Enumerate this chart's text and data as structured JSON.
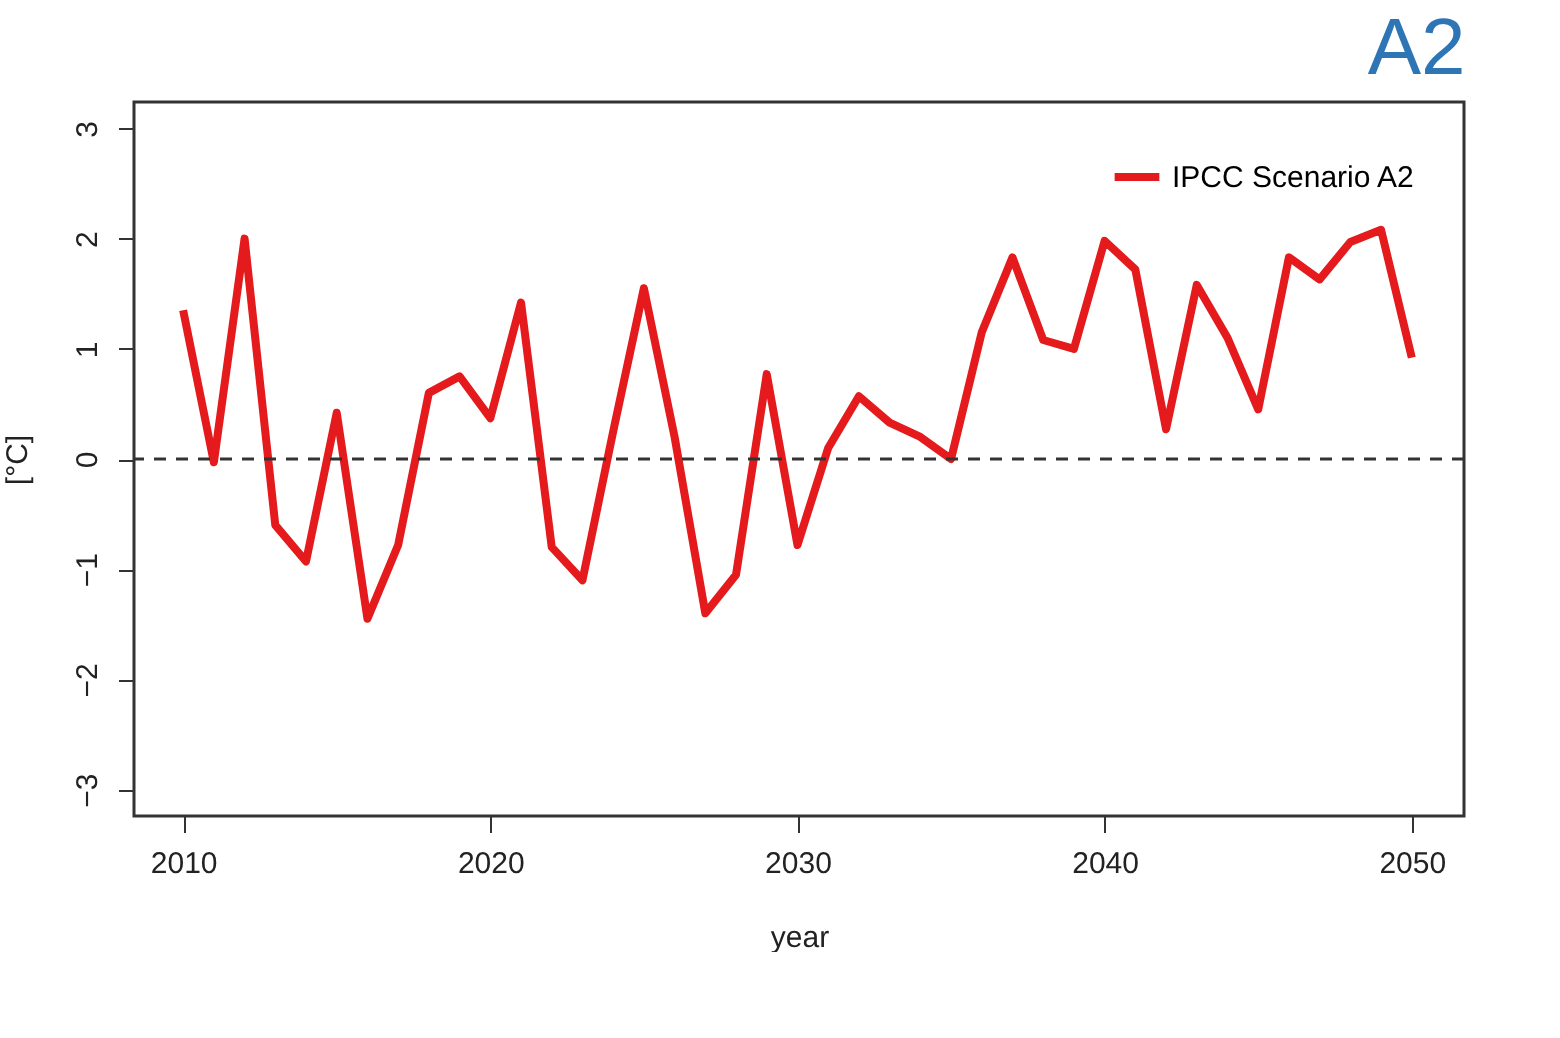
{
  "chart_data": {
    "type": "line",
    "title": "A2",
    "xlabel": "year",
    "ylabel": "[°C]",
    "x": [
      2010,
      2011,
      2012,
      2013,
      2014,
      2015,
      2016,
      2017,
      2018,
      2019,
      2020,
      2021,
      2022,
      2023,
      2024,
      2025,
      2026,
      2027,
      2028,
      2029,
      2030,
      2031,
      2032,
      2033,
      2034,
      2035,
      2036,
      2037,
      2038,
      2039,
      2040,
      2041,
      2042,
      2043,
      2044,
      2045,
      2046,
      2047,
      2048,
      2049,
      2050
    ],
    "series": [
      {
        "name": "IPCC Scenario A2",
        "color": "#e41a1c",
        "values": [
          1.35,
          -0.03,
          2.0,
          -0.6,
          -0.93,
          0.42,
          -1.45,
          -0.78,
          0.6,
          0.75,
          0.37,
          1.42,
          -0.8,
          -1.1,
          0.25,
          1.55,
          0.2,
          -1.4,
          -1.05,
          0.77,
          -0.78,
          0.1,
          0.57,
          0.33,
          0.2,
          0.0,
          1.15,
          1.83,
          1.08,
          1.0,
          1.98,
          1.72,
          0.27,
          1.58,
          1.1,
          0.45,
          1.83,
          1.63,
          1.97,
          2.08,
          0.92
        ]
      }
    ],
    "xlim": [
      2008.4,
      2051.7
    ],
    "xticks": [
      2010,
      2020,
      2030,
      2040,
      2050
    ],
    "ylim": [
      -3.24,
      3.24
    ],
    "yticks": [
      -3,
      -2,
      -1,
      0,
      1,
      2,
      3
    ],
    "ref_lines": [
      {
        "axis": "y",
        "value": 0,
        "color": "#333333",
        "line_style": "dashed"
      }
    ],
    "grid": false,
    "legend": "top right",
    "line_style": "solid",
    "marker": "none"
  }
}
